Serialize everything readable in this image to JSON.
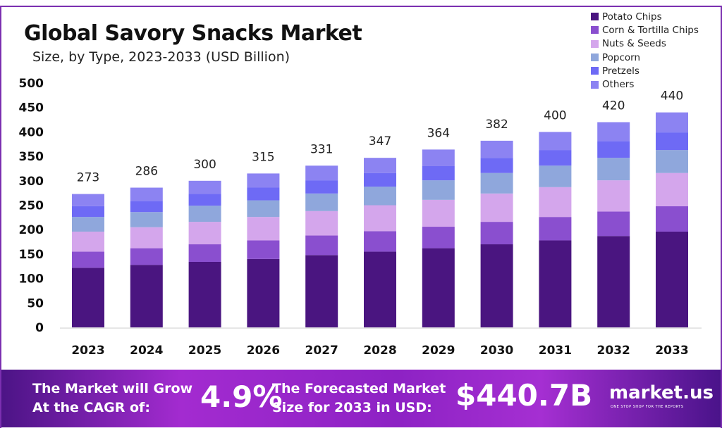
{
  "chart_data": {
    "type": "bar",
    "stacked": true,
    "title": "Global Savory Snacks Market",
    "subtitle": "Size, by Type, 2023-2033 (USD Billion)",
    "categories": [
      "2023",
      "2024",
      "2025",
      "2026",
      "2027",
      "2028",
      "2029",
      "2030",
      "2031",
      "2032",
      "2033"
    ],
    "totals": [
      273,
      286,
      300,
      315,
      331,
      347,
      364,
      382,
      400,
      420,
      440
    ],
    "series": [
      {
        "name": "Potato Chips",
        "color": "#4a1580",
        "values": [
          122,
          128,
          134,
          140,
          148,
          155,
          162,
          170,
          178,
          187,
          196
        ]
      },
      {
        "name": "Corn & Tortilla Chips",
        "color": "#8a4fcf",
        "values": [
          33,
          34,
          36,
          38,
          40,
          42,
          44,
          46,
          48,
          50,
          52
        ]
      },
      {
        "name": "Nuts & Seeds",
        "color": "#d4a6ec",
        "values": [
          41,
          43,
          46,
          48,
          50,
          53,
          55,
          58,
          61,
          64,
          68
        ]
      },
      {
        "name": "Popcorn",
        "color": "#8fa7dc",
        "values": [
          30,
          31,
          33,
          34,
          36,
          38,
          40,
          42,
          44,
          46,
          47
        ]
      },
      {
        "name": "Pretzels",
        "color": "#6e6af5",
        "values": [
          22,
          23,
          24,
          26,
          27,
          28,
          29,
          31,
          32,
          34,
          36
        ]
      },
      {
        "name": "Others",
        "color": "#8c83f2",
        "values": [
          25,
          27,
          27,
          29,
          30,
          31,
          34,
          35,
          37,
          39,
          41
        ]
      }
    ],
    "yticks": [
      "0",
      "50",
      "100",
      "150",
      "200",
      "250",
      "300",
      "350",
      "400",
      "450",
      "500"
    ],
    "ylim": [
      0,
      500
    ],
    "grid": false,
    "legend": "top-right"
  },
  "footer": {
    "cagr_label_1": "The Market will Grow",
    "cagr_label_2": "At the CAGR of:",
    "cagr_value": "4.9%",
    "forecast_label_1": "The Forecasted Market",
    "forecast_label_2": "Size for 2033 in USD:",
    "forecast_value": "$440.7B",
    "brand": "market.us",
    "brand_tagline": "ONE STOP SHOP FOR THE REPORTS"
  }
}
